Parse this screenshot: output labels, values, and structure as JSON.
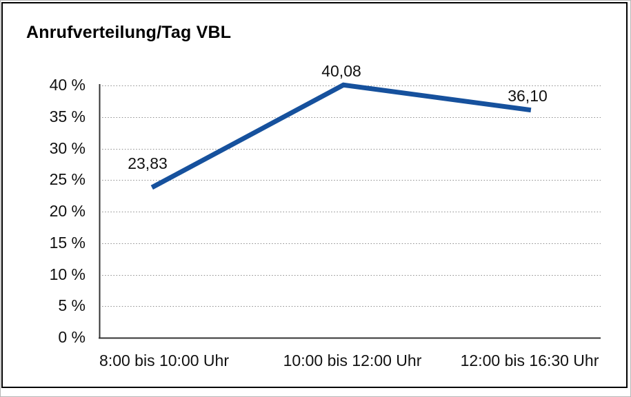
{
  "title": "Anrufverteilung/Tag VBL",
  "colors": {
    "line": "#16519D",
    "grid": "#8a8a8a",
    "axis": "#333333",
    "text": "#000000",
    "border": "#000000",
    "background": "#ffffff"
  },
  "chart_data": {
    "type": "line",
    "title": "Anrufverteilung/Tag VBL",
    "categories": [
      "8:00 bis 10:00 Uhr",
      "10:00 bis 12:00 Uhr",
      "12:00 bis 16:30 Uhr"
    ],
    "values": [
      23.83,
      40.08,
      36.1
    ],
    "point_labels": [
      "23,83",
      "40,08",
      "36,10"
    ],
    "xlabel": "",
    "ylabel": "",
    "ylim": [
      0,
      40
    ],
    "y_tick_step": 5,
    "y_tick_labels": [
      "0 %",
      "5 %",
      "10 %",
      "15 %",
      "20 %",
      "25 %",
      "30 %",
      "35 %",
      "40 %"
    ],
    "grid": "horizontal-dotted",
    "legend": "none",
    "line_color": "#16519D"
  }
}
